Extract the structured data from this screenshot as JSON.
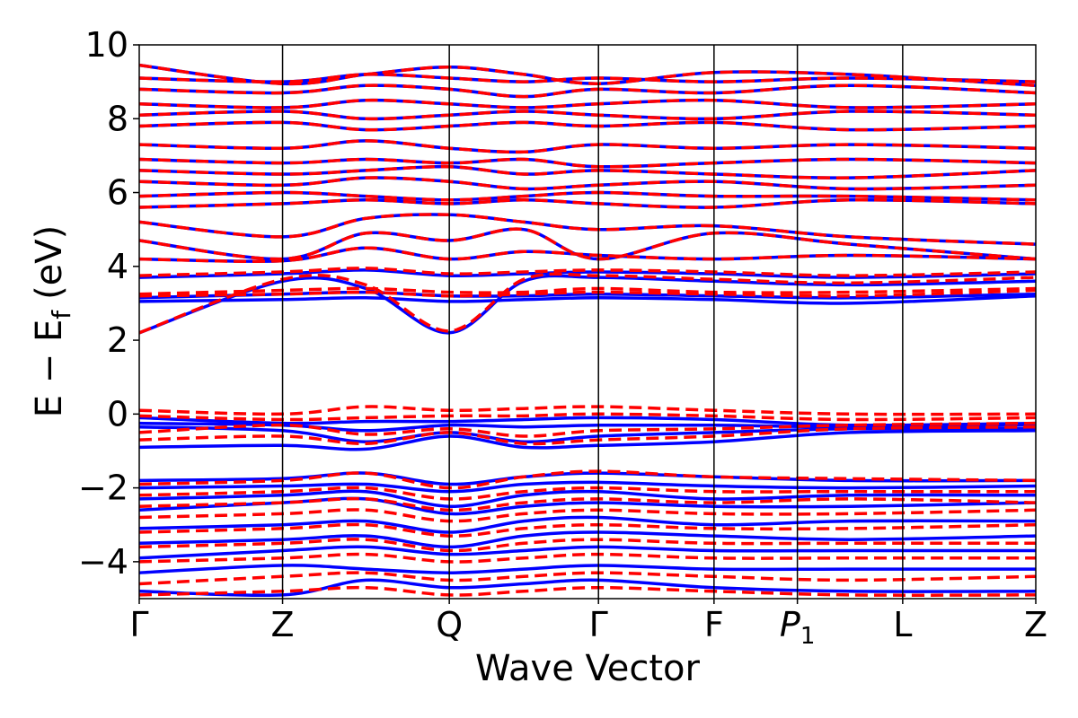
{
  "chart_data": {
    "type": "line",
    "title": "",
    "xlabel": "Wave Vector",
    "ylabel": "E − E",
    "ylabel_sub": "f",
    "ylabel_unit": "(eV)",
    "ylim": [
      -5,
      10
    ],
    "yticks": [
      10,
      8,
      6,
      4,
      2,
      0,
      -2,
      -4
    ],
    "ytick_labels": [
      "10",
      "8",
      "6",
      "4",
      "2",
      "0",
      "−2",
      "−4"
    ],
    "xlim": [
      0,
      6.13
    ],
    "kpath": [
      {
        "label": "Γ",
        "x": 0.0
      },
      {
        "label": "Z",
        "x": 0.98
      },
      {
        "label": "Q",
        "x": 2.12
      },
      {
        "label": "Γ",
        "x": 3.14
      },
      {
        "label": "F",
        "x": 3.93
      },
      {
        "label": "P",
        "sub": "1",
        "x": 4.5
      },
      {
        "label": "L",
        "x": 5.22
      },
      {
        "label": "Z",
        "x": 6.13
      }
    ],
    "series": [
      {
        "color": "#0000ff",
        "style": "solid",
        "bands": [
          {
            "y": [
              -0.9,
              -0.85,
              -0.95,
              -0.6,
              -0.9,
              -0.85,
              -0.75,
              -0.5,
              -0.45
            ]
          },
          {
            "y": [
              -0.35,
              -0.45,
              -0.75,
              -0.5,
              -0.75,
              -0.6,
              -0.5,
              -0.4,
              -0.4
            ]
          },
          {
            "y": [
              -0.25,
              -0.3,
              -0.45,
              -0.3,
              -0.35,
              -0.3,
              -0.3,
              -0.35,
              -0.3
            ]
          },
          {
            "y": [
              -0.1,
              -0.25,
              -0.2,
              -0.2,
              -0.15,
              -0.1,
              -0.15,
              -0.3,
              -0.25
            ]
          },
          {
            "y": [
              -1.8,
              -1.75,
              -1.6,
              -1.9,
              -1.7,
              -1.6,
              -1.7,
              -1.8,
              -1.8
            ]
          },
          {
            "y": [
              -2.0,
              -1.95,
              -1.9,
              -2.1,
              -1.9,
              -1.85,
              -1.95,
              -2.0,
              -1.95
            ]
          },
          {
            "y": [
              -2.3,
              -2.2,
              -2.1,
              -2.5,
              -2.2,
              -2.1,
              -2.3,
              -2.2,
              -2.2
            ]
          },
          {
            "y": [
              -2.6,
              -2.4,
              -2.3,
              -2.7,
              -2.5,
              -2.4,
              -2.5,
              -2.5,
              -2.4
            ]
          },
          {
            "y": [
              -3.1,
              -3.0,
              -2.9,
              -3.2,
              -2.9,
              -2.8,
              -3.0,
              -2.9,
              -2.9
            ]
          },
          {
            "y": [
              -3.5,
              -3.4,
              -3.3,
              -3.6,
              -3.3,
              -3.2,
              -3.3,
              -3.4,
              -3.3
            ]
          },
          {
            "y": [
              -3.9,
              -3.7,
              -3.6,
              -3.8,
              -3.7,
              -3.6,
              -3.7,
              -3.7,
              -3.7
            ]
          },
          {
            "y": [
              -4.3,
              -4.1,
              -4.2,
              -4.3,
              -4.2,
              -4.1,
              -4.2,
              -4.2,
              -4.2
            ]
          },
          {
            "y": [
              -4.8,
              -4.9,
              -4.5,
              -4.7,
              -4.6,
              -4.5,
              -4.7,
              -4.8,
              -4.8
            ]
          },
          {
            "y": [
              3.05,
              3.1,
              3.15,
              3.05,
              3.1,
              3.15,
              3.1,
              3.0,
              3.2
            ]
          },
          {
            "y": [
              3.15,
              3.25,
              3.3,
              3.2,
              3.2,
              3.25,
              3.2,
              3.15,
              3.25
            ]
          },
          {
            "y": [
              2.2,
              3.6,
              3.4,
              2.2,
              3.6,
              3.7,
              3.6,
              3.5,
              3.6
            ]
          },
          {
            "y": [
              3.7,
              3.8,
              3.9,
              3.75,
              3.8,
              3.85,
              3.8,
              3.7,
              3.8
            ]
          },
          {
            "y": [
              4.2,
              4.15,
              4.5,
              4.2,
              4.4,
              4.3,
              4.2,
              4.3,
              4.2
            ]
          },
          {
            "y": [
              4.7,
              4.2,
              4.9,
              4.7,
              5.0,
              4.2,
              4.9,
              4.6,
              4.2
            ]
          },
          {
            "y": [
              5.2,
              4.8,
              5.3,
              5.4,
              5.2,
              5.0,
              5.1,
              4.8,
              4.6
            ]
          },
          {
            "y": [
              5.6,
              5.7,
              5.8,
              5.7,
              5.8,
              5.7,
              5.6,
              5.8,
              5.7
            ]
          },
          {
            "y": [
              5.9,
              6.0,
              5.9,
              5.8,
              5.9,
              6.0,
              5.9,
              5.9,
              5.8
            ]
          },
          {
            "y": [
              6.3,
              6.2,
              6.4,
              6.3,
              6.1,
              6.2,
              6.3,
              6.1,
              6.2
            ]
          },
          {
            "y": [
              6.6,
              6.5,
              6.6,
              6.7,
              6.5,
              6.6,
              6.5,
              6.4,
              6.6
            ]
          },
          {
            "y": [
              6.9,
              6.8,
              6.9,
              6.8,
              6.9,
              6.7,
              6.8,
              6.9,
              6.8
            ]
          },
          {
            "y": [
              7.3,
              7.2,
              7.4,
              7.2,
              7.1,
              7.3,
              7.2,
              7.3,
              7.2
            ]
          },
          {
            "y": [
              7.8,
              7.9,
              7.7,
              7.8,
              7.9,
              7.8,
              7.9,
              7.7,
              7.8
            ]
          },
          {
            "y": [
              8.1,
              8.2,
              8.0,
              8.1,
              8.2,
              8.1,
              8.0,
              8.2,
              8.1
            ]
          },
          {
            "y": [
              8.4,
              8.3,
              8.5,
              8.4,
              8.3,
              8.4,
              8.5,
              8.3,
              8.4
            ]
          },
          {
            "y": [
              8.8,
              8.7,
              8.9,
              8.8,
              8.6,
              8.8,
              8.7,
              8.9,
              8.7
            ]
          },
          {
            "y": [
              9.1,
              9.0,
              9.2,
              9.1,
              9.0,
              9.1,
              9.0,
              9.1,
              9.0
            ]
          },
          {
            "y": [
              9.45,
              8.95,
              9.2,
              9.4,
              9.2,
              8.95,
              9.25,
              9.2,
              8.9
            ]
          }
        ]
      },
      {
        "color": "#ff0000",
        "style": "dashed",
        "bands": [
          {
            "y": [
              -0.7,
              -0.6,
              -0.8,
              -0.5,
              -0.8,
              -0.7,
              -0.6,
              -0.4,
              -0.35
            ]
          },
          {
            "y": [
              -0.5,
              -0.3,
              -0.55,
              -0.4,
              -0.6,
              -0.45,
              -0.4,
              -0.3,
              -0.25
            ]
          },
          {
            "y": [
              -0.05,
              -0.15,
              -0.1,
              -0.05,
              -0.05,
              0.0,
              -0.05,
              -0.15,
              -0.1
            ]
          },
          {
            "y": [
              0.1,
              0.0,
              0.2,
              0.1,
              0.15,
              0.2,
              0.1,
              0.0,
              0.0
            ]
          },
          {
            "y": [
              -1.9,
              -1.8,
              -1.6,
              -2.0,
              -1.7,
              -1.55,
              -1.7,
              -1.75,
              -1.8
            ]
          },
          {
            "y": [
              -2.2,
              -2.1,
              -2.0,
              -2.3,
              -2.1,
              -2.0,
              -2.1,
              -2.1,
              -2.1
            ]
          },
          {
            "y": [
              -2.5,
              -2.4,
              -2.3,
              -2.6,
              -2.4,
              -2.3,
              -2.4,
              -2.3,
              -2.4
            ]
          },
          {
            "y": [
              -2.8,
              -2.7,
              -2.6,
              -2.9,
              -2.7,
              -2.6,
              -2.7,
              -2.7,
              -2.6
            ]
          },
          {
            "y": [
              -3.2,
              -3.1,
              -3.0,
              -3.3,
              -3.1,
              -3.0,
              -3.1,
              -3.1,
              -3.0
            ]
          },
          {
            "y": [
              -3.6,
              -3.5,
              -3.4,
              -3.7,
              -3.5,
              -3.4,
              -3.5,
              -3.5,
              -3.5
            ]
          },
          {
            "y": [
              -4.0,
              -3.9,
              -3.8,
              -4.0,
              -3.9,
              -3.8,
              -3.9,
              -3.9,
              -3.9
            ]
          },
          {
            "y": [
              -4.6,
              -4.4,
              -4.3,
              -4.5,
              -4.4,
              -4.3,
              -4.4,
              -4.5,
              -4.4
            ]
          },
          {
            "y": [
              -4.9,
              -4.8,
              -4.7,
              -4.9,
              -4.8,
              -4.7,
              -4.8,
              -4.9,
              -4.9
            ]
          },
          {
            "y": [
              3.2,
              3.25,
              3.3,
              3.2,
              3.25,
              3.3,
              3.25,
              3.2,
              3.35
            ]
          },
          {
            "y": [
              3.25,
              3.35,
              3.4,
              3.3,
              3.3,
              3.4,
              3.3,
              3.3,
              3.4
            ]
          },
          {
            "y": [
              2.2,
              3.65,
              3.5,
              2.25,
              3.65,
              3.75,
              3.65,
              3.55,
              3.7
            ]
          },
          {
            "y": [
              3.75,
              3.85,
              3.95,
              3.8,
              3.85,
              3.9,
              3.85,
              3.75,
              3.85
            ]
          },
          {
            "y": [
              4.2,
              4.15,
              4.5,
              4.2,
              4.4,
              4.3,
              4.2,
              4.3,
              4.2
            ]
          },
          {
            "y": [
              4.7,
              4.2,
              4.9,
              4.7,
              5.0,
              4.2,
              4.9,
              4.6,
              4.2
            ]
          },
          {
            "y": [
              5.2,
              4.8,
              5.3,
              5.4,
              5.2,
              5.0,
              5.1,
              4.8,
              4.6
            ]
          },
          {
            "y": [
              5.6,
              5.7,
              5.8,
              5.7,
              5.8,
              5.7,
              5.6,
              5.8,
              5.7
            ]
          },
          {
            "y": [
              5.9,
              6.0,
              5.9,
              5.8,
              5.9,
              6.0,
              5.9,
              5.9,
              5.8
            ]
          },
          {
            "y": [
              6.3,
              6.2,
              6.4,
              6.3,
              6.1,
              6.2,
              6.3,
              6.1,
              6.2
            ]
          },
          {
            "y": [
              6.6,
              6.5,
              6.6,
              6.7,
              6.5,
              6.6,
              6.5,
              6.4,
              6.6
            ]
          },
          {
            "y": [
              6.9,
              6.8,
              6.9,
              6.8,
              6.9,
              6.7,
              6.8,
              6.9,
              6.8
            ]
          },
          {
            "y": [
              7.3,
              7.2,
              7.4,
              7.2,
              7.1,
              7.3,
              7.2,
              7.3,
              7.2
            ]
          },
          {
            "y": [
              7.8,
              7.9,
              7.7,
              7.8,
              7.9,
              7.8,
              7.9,
              7.7,
              7.8
            ]
          },
          {
            "y": [
              8.1,
              8.2,
              8.0,
              8.1,
              8.2,
              8.1,
              8.0,
              8.2,
              8.1
            ]
          },
          {
            "y": [
              8.4,
              8.3,
              8.5,
              8.4,
              8.3,
              8.4,
              8.5,
              8.3,
              8.4
            ]
          },
          {
            "y": [
              8.8,
              8.7,
              8.9,
              8.8,
              8.6,
              8.8,
              8.7,
              8.9,
              8.7
            ]
          },
          {
            "y": [
              9.1,
              9.0,
              9.2,
              9.1,
              9.0,
              9.1,
              9.0,
              9.1,
              9.0
            ]
          },
          {
            "y": [
              9.45,
              8.95,
              9.2,
              9.4,
              9.2,
              8.95,
              9.25,
              9.2,
              8.9
            ]
          }
        ]
      }
    ],
    "band_x": [
      0.0,
      0.98,
      1.55,
      2.12,
      2.63,
      3.14,
      3.93,
      4.86,
      6.13
    ],
    "grid": false,
    "legend": "none"
  }
}
